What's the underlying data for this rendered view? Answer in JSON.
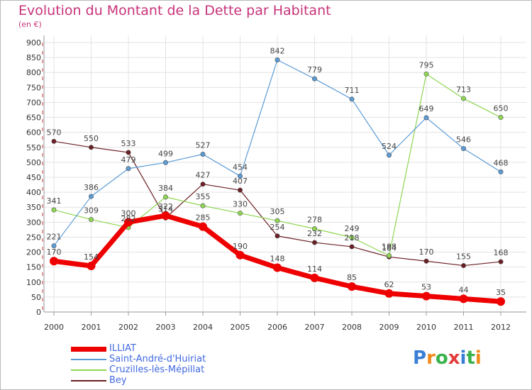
{
  "header": {
    "title": "Evolution du Montant de la Dette par Habitant",
    "unit": "(en €)"
  },
  "logo": {
    "text": "Proxiti",
    "colors": [
      "#3a7fd5",
      "#f08a1c",
      "#38b24a",
      "#e23c3c",
      "#3a7fd5",
      "#38b24a",
      "#f08a1c"
    ]
  },
  "chart_data": {
    "type": "line",
    "title": "Evolution du Montant de la Dette par Habitant",
    "ylabel": "(en €)",
    "xlabel": "",
    "categories": [
      "2000",
      "2001",
      "2002",
      "2003",
      "2004",
      "2005",
      "2006",
      "2007",
      "2008",
      "2009",
      "2010",
      "2011",
      "2012"
    ],
    "ylim": [
      0,
      900
    ],
    "yticks": [
      0,
      50,
      100,
      150,
      200,
      250,
      300,
      350,
      400,
      450,
      500,
      550,
      600,
      650,
      700,
      750,
      800,
      850,
      900
    ],
    "grid": true,
    "legend_position": "bottom-left",
    "series": [
      {
        "name": "Bey",
        "color": "#6b1f24",
        "values": [
          570,
          550,
          533,
          314,
          427,
          407,
          254,
          232,
          218,
          184,
          170,
          155,
          168
        ]
      },
      {
        "name": "Cruzilles-lès-Mépillat",
        "color": "#8ed653",
        "values": [
          341,
          309,
          282,
          384,
          355,
          330,
          305,
          278,
          249,
          188,
          795,
          713,
          650
        ]
      },
      {
        "name": "Saint-André-d'Huiriat",
        "color": "#5b9bd5",
        "values": [
          221,
          386,
          479,
          499,
          527,
          454,
          842,
          779,
          711,
          524,
          649,
          546,
          468
        ]
      },
      {
        "name": "ILLIAT",
        "color": "#ee0000",
        "values": [
          170,
          154,
          300,
          322,
          285,
          190,
          148,
          114,
          85,
          62,
          53,
          44,
          35
        ]
      }
    ],
    "legend": [
      "ILLIAT",
      "Saint-André-d'Huiriat",
      "Cruzilles-lès-Mépillat",
      "Bey"
    ]
  }
}
